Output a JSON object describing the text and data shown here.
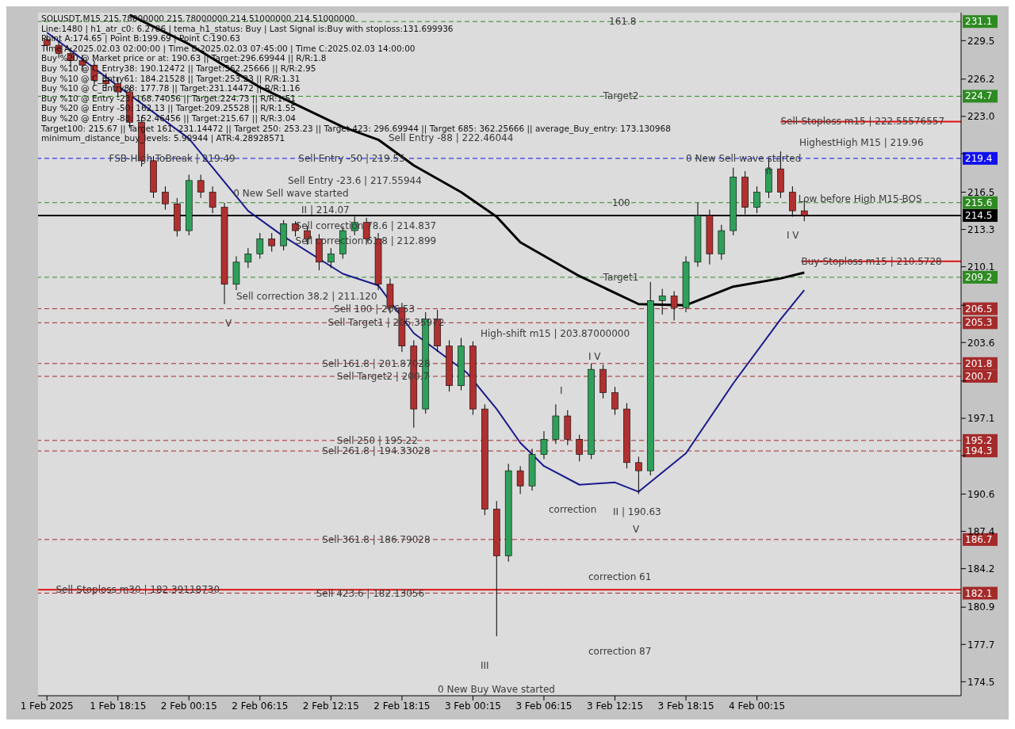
{
  "chart_data": {
    "type": "candlestick",
    "title": "SOLUSDT,M15  215.78000000 215.78000000 214.51000000 214.51000000",
    "x": [
      "2025-02-01T12:15",
      "2025-02-01T13:15",
      "2025-02-01T14:15",
      "2025-02-01T15:15",
      "2025-02-01T16:15",
      "2025-02-01T17:15",
      "2025-02-01T18:15",
      "2025-02-01T19:15",
      "2025-02-01T20:15",
      "2025-02-01T21:15",
      "2025-02-01T22:15",
      "2025-02-01T23:15",
      "2025-02-02T00:15",
      "2025-02-02T01:15",
      "2025-02-02T02:15",
      "2025-02-02T03:15",
      "2025-02-02T04:15",
      "2025-02-02T05:15",
      "2025-02-02T06:15",
      "2025-02-02T07:15",
      "2025-02-02T08:15",
      "2025-02-02T09:15",
      "2025-02-02T10:15",
      "2025-02-02T11:15",
      "2025-02-02T12:15",
      "2025-02-02T13:15",
      "2025-02-02T14:15",
      "2025-02-02T15:15",
      "2025-02-02T16:15",
      "2025-02-02T17:15",
      "2025-02-02T18:15",
      "2025-02-02T19:15",
      "2025-02-02T20:15",
      "2025-02-02T21:15",
      "2025-02-02T22:15",
      "2025-02-02T23:15",
      "2025-02-03T00:15",
      "2025-02-03T01:15",
      "2025-02-03T02:15",
      "2025-02-03T03:15",
      "2025-02-03T04:15",
      "2025-02-03T05:15",
      "2025-02-03T06:15",
      "2025-02-03T07:15",
      "2025-02-03T08:15",
      "2025-02-03T09:15",
      "2025-02-03T10:15",
      "2025-02-03T11:15",
      "2025-02-03T12:15",
      "2025-02-03T13:15",
      "2025-02-03T14:15",
      "2025-02-03T15:15",
      "2025-02-03T16:15",
      "2025-02-03T17:15",
      "2025-02-03T18:15",
      "2025-02-03T19:15",
      "2025-02-03T20:15",
      "2025-02-03T21:15",
      "2025-02-03T22:15",
      "2025-02-03T23:15",
      "2025-02-04T00:15",
      "2025-02-04T01:15",
      "2025-02-04T02:15",
      "2025-02-04T03:15",
      "2025-02-04T04:15"
    ],
    "ohlc": [
      [
        229.6,
        230.0,
        228.7,
        229.1
      ],
      [
        229.1,
        229.5,
        228.0,
        228.4
      ],
      [
        228.4,
        228.9,
        227.3,
        227.8
      ],
      [
        227.8,
        228.3,
        226.9,
        227.4
      ],
      [
        227.4,
        227.8,
        225.6,
        226.1
      ],
      [
        226.1,
        226.7,
        225.2,
        225.8
      ],
      [
        225.8,
        226.3,
        224.6,
        225.1
      ],
      [
        225.1,
        225.5,
        222.0,
        222.5
      ],
      [
        222.5,
        223.0,
        218.7,
        219.2
      ],
      [
        219.2,
        219.6,
        216.0,
        216.5
      ],
      [
        216.5,
        217.0,
        215.0,
        215.5
      ],
      [
        215.5,
        216.0,
        212.7,
        213.2
      ],
      [
        213.2,
        218.0,
        212.8,
        217.5
      ],
      [
        217.5,
        218.0,
        216.0,
        216.5
      ],
      [
        216.5,
        217.0,
        214.7,
        215.2
      ],
      [
        215.2,
        215.6,
        206.9,
        208.6
      ],
      [
        208.6,
        211.0,
        208.1,
        210.5
      ],
      [
        210.5,
        211.7,
        210.0,
        211.2
      ],
      [
        211.2,
        213.0,
        210.8,
        212.5
      ],
      [
        212.5,
        213.0,
        211.4,
        211.9
      ],
      [
        211.9,
        214.1,
        211.5,
        213.8
      ],
      [
        213.8,
        214.0,
        212.7,
        213.2
      ],
      [
        213.2,
        213.6,
        212.0,
        212.5
      ],
      [
        212.5,
        212.9,
        209.8,
        210.5
      ],
      [
        210.5,
        211.7,
        210.0,
        211.2
      ],
      [
        211.2,
        213.6,
        210.8,
        213.2
      ],
      [
        213.2,
        214.4,
        212.8,
        213.9
      ],
      [
        213.9,
        214.3,
        212.0,
        212.5
      ],
      [
        212.5,
        213.0,
        208.1,
        208.6
      ],
      [
        208.6,
        209.1,
        206.1,
        206.6
      ],
      [
        206.6,
        207.0,
        202.8,
        203.3
      ],
      [
        203.3,
        203.8,
        196.3,
        197.9
      ],
      [
        197.9,
        206.2,
        197.5,
        205.6
      ],
      [
        205.6,
        206.4,
        202.8,
        203.3
      ],
      [
        203.3,
        203.8,
        199.4,
        199.9
      ],
      [
        199.9,
        204.0,
        199.5,
        203.3
      ],
      [
        203.3,
        203.7,
        197.4,
        197.9
      ],
      [
        197.9,
        198.3,
        188.8,
        189.3
      ],
      [
        189.3,
        190.0,
        178.4,
        185.3
      ],
      [
        185.3,
        193.2,
        184.8,
        192.6
      ],
      [
        192.6,
        193.0,
        190.6,
        191.3
      ],
      [
        191.3,
        194.5,
        190.9,
        194.0
      ],
      [
        194.0,
        196.0,
        193.6,
        195.3
      ],
      [
        195.3,
        198.3,
        194.9,
        197.3
      ],
      [
        197.3,
        197.8,
        194.8,
        195.3
      ],
      [
        195.3,
        195.7,
        193.4,
        194.0
      ],
      [
        194.0,
        201.8,
        193.6,
        201.3
      ],
      [
        201.3,
        201.7,
        198.8,
        199.3
      ],
      [
        199.3,
        199.8,
        197.4,
        197.9
      ],
      [
        197.9,
        198.4,
        192.8,
        193.3
      ],
      [
        193.3,
        193.8,
        190.6,
        192.6
      ],
      [
        192.6,
        208.8,
        192.2,
        207.2
      ],
      [
        207.2,
        208.2,
        206.0,
        207.6
      ],
      [
        207.6,
        208.0,
        205.5,
        206.6
      ],
      [
        206.6,
        211.0,
        206.2,
        210.5
      ],
      [
        210.5,
        215.6,
        210.1,
        214.5
      ],
      [
        214.5,
        215.0,
        210.3,
        211.2
      ],
      [
        211.2,
        213.7,
        210.7,
        213.2
      ],
      [
        213.2,
        218.6,
        212.8,
        217.8
      ],
      [
        217.8,
        218.3,
        214.6,
        215.2
      ],
      [
        215.2,
        217.0,
        214.7,
        216.5
      ],
      [
        216.5,
        219.4,
        216.0,
        218.5
      ],
      [
        218.5,
        220.0,
        216.0,
        216.5
      ],
      [
        216.5,
        217.0,
        214.4,
        214.9
      ],
      [
        214.9,
        215.8,
        214.0,
        214.5
      ]
    ],
    "colors": [
      "#b03030",
      "#b03030",
      "#b03030",
      "#b03030",
      "#b03030",
      "#b03030",
      "#b03030",
      "#b03030",
      "#b03030",
      "#b03030",
      "#b03030",
      "#b03030",
      "#2ea05a",
      "#b03030",
      "#b03030",
      "#b03030",
      "#2ea05a",
      "#2ea05a",
      "#2ea05a",
      "#b03030",
      "#2ea05a",
      "#b03030",
      "#b03030",
      "#b03030",
      "#2ea05a",
      "#2ea05a",
      "#2ea05a",
      "#b03030",
      "#b03030",
      "#b03030",
      "#b03030",
      "#b03030",
      "#2ea05a",
      "#b03030",
      "#b03030",
      "#2ea05a",
      "#b03030",
      "#b03030",
      "#b03030",
      "#2ea05a",
      "#b03030",
      "#2ea05a",
      "#2ea05a",
      "#2ea05a",
      "#b03030",
      "#b03030",
      "#2ea05a",
      "#b03030",
      "#b03030",
      "#b03030",
      "#b03030",
      "#2ea05a",
      "#2ea05a",
      "#b03030",
      "#2ea05a",
      "#2ea05a",
      "#b03030",
      "#2ea05a",
      "#2ea05a",
      "#b03030",
      "#2ea05a",
      "#2ea05a",
      "#b03030",
      "#b03030",
      "#b03030"
    ],
    "series": [
      {
        "type": "line",
        "color": "#000000",
        "x": [
          "2025-02-01T19:15",
          "2025-02-02T00:15",
          "2025-02-02T06:15",
          "2025-02-02T13:15",
          "2025-02-02T16:15",
          "2025-02-02T19:15",
          "2025-02-02T23:15",
          "2025-02-03T02:15",
          "2025-02-03T04:15",
          "2025-02-03T09:15",
          "2025-02-03T14:15",
          "2025-02-03T18:15",
          "2025-02-03T22:15",
          "2025-02-04T02:15",
          "2025-02-04T04:15"
        ],
        "values": [
          231.7,
          229.2,
          225.5,
          222.1,
          221.0,
          218.8,
          216.5,
          214.4,
          212.2,
          209.3,
          206.9,
          206.8,
          208.4,
          209.1,
          209.6
        ]
      },
      {
        "type": "line",
        "color": "#1a1a8c",
        "x": [
          "2025-02-01T12:15",
          "2025-02-01T18:15",
          "2025-02-02T00:15",
          "2025-02-02T05:15",
          "2025-02-02T08:15",
          "2025-02-02T13:15",
          "2025-02-02T16:15",
          "2025-02-02T19:15",
          "2025-02-02T23:45",
          "2025-02-03T02:15",
          "2025-02-03T04:15",
          "2025-02-03T06:15",
          "2025-02-03T09:15",
          "2025-02-03T12:15",
          "2025-02-03T14:15",
          "2025-02-03T18:15",
          "2025-02-03T22:15",
          "2025-02-04T02:15",
          "2025-02-04T04:15"
        ],
        "values": [
          230.2,
          225.6,
          221.1,
          214.9,
          212.7,
          209.5,
          208.5,
          204.4,
          201.0,
          197.9,
          195.0,
          193.0,
          191.4,
          191.6,
          190.8,
          194.1,
          200.1,
          205.6,
          208.1
        ]
      },
      {
        "type": "line",
        "color": "#e01010",
        "x": [
          "2025-02-04T02:15",
          "2025-02-04T17:30"
        ],
        "values": [
          222.56,
          222.56
        ]
      },
      {
        "type": "line",
        "color": "#e01010",
        "x": [
          "2025-02-04T04:00",
          "2025-02-04T17:30"
        ],
        "values": [
          210.57,
          210.57
        ]
      }
    ],
    "line_style": "solid",
    "marker": "none",
    "xlim": [
      "2025-02-01T11:30",
      "2025-02-04T17:30"
    ],
    "xticks": [
      {
        "value": "2025-02-01T12:15",
        "label": "1 Feb 2025"
      },
      {
        "value": "2025-02-01T18:15",
        "label": "1 Feb 18:15"
      },
      {
        "value": "2025-02-02T00:15",
        "label": "2 Feb 00:15"
      },
      {
        "value": "2025-02-02T06:15",
        "label": "2 Feb 06:15"
      },
      {
        "value": "2025-02-02T12:15",
        "label": "2 Feb 12:15"
      },
      {
        "value": "2025-02-02T18:15",
        "label": "2 Feb 18:15"
      },
      {
        "value": "2025-02-03T00:15",
        "label": "3 Feb 00:15"
      },
      {
        "value": "2025-02-03T06:15",
        "label": "3 Feb 06:15"
      },
      {
        "value": "2025-02-03T12:15",
        "label": "3 Feb 12:15"
      },
      {
        "value": "2025-02-03T18:15",
        "label": "3 Feb 18:15"
      },
      {
        "value": "2025-02-04T00:15",
        "label": "4 Feb 00:15"
      }
    ],
    "ylim": [
      173.3,
      231.9
    ],
    "yticks": [
      {
        "value": 229.5,
        "label": "229.5"
      },
      {
        "value": 226.2,
        "label": "226.2"
      },
      {
        "value": 223.0,
        "label": "223.0"
      },
      {
        "value": 219.8,
        "label": null
      },
      {
        "value": 216.5,
        "label": "216.5"
      },
      {
        "value": 213.3,
        "label": "213.3"
      },
      {
        "value": 210.1,
        "label": "210.1"
      },
      {
        "value": 206.8,
        "label": null
      },
      {
        "value": 203.6,
        "label": "203.6"
      },
      {
        "value": 200.3,
        "label": null
      },
      {
        "value": 197.1,
        "label": "197.1"
      },
      {
        "value": 193.9,
        "label": null
      },
      {
        "value": 190.6,
        "label": "190.6"
      },
      {
        "value": 187.4,
        "label": "187.4"
      },
      {
        "value": 184.2,
        "label": "184.2"
      },
      {
        "value": 180.9,
        "label": "180.9"
      },
      {
        "value": 177.7,
        "label": "177.7"
      },
      {
        "value": 174.5,
        "label": "174.5"
      }
    ],
    "ref_lines": [
      {
        "axis": "y",
        "value": 231.14,
        "label": "231.1",
        "color": "#2e8b22",
        "line_style": "dashed"
      },
      {
        "axis": "y",
        "value": 224.73,
        "label": "224.7",
        "color": "#2e8b22",
        "line_style": "dashed"
      },
      {
        "axis": "y",
        "value": 219.4,
        "label": "219.4",
        "color": "#1010f0",
        "line_style": "dashed"
      },
      {
        "axis": "y",
        "value": 215.6,
        "label": "215.6",
        "color": "#2e8b22",
        "line_style": "dashed"
      },
      {
        "axis": "y",
        "value": 214.5,
        "label": "214.5",
        "color": "#000000",
        "line_style": "solid"
      },
      {
        "axis": "y",
        "value": 209.2,
        "label": "209.2",
        "color": "#2e8b22",
        "line_style": "dashed"
      },
      {
        "axis": "y",
        "value": 206.5,
        "label": "206.5",
        "color": "#a52a2a",
        "line_style": "dashed"
      },
      {
        "axis": "y",
        "value": 205.3,
        "label": "205.3",
        "color": "#a52a2a",
        "line_style": "dashed"
      },
      {
        "axis": "y",
        "value": 201.8,
        "label": "201.8",
        "color": "#a52a2a",
        "line_style": "dashed"
      },
      {
        "axis": "y",
        "value": 200.7,
        "label": "200.7",
        "color": "#a52a2a",
        "line_style": "dashed"
      },
      {
        "axis": "y",
        "value": 195.2,
        "label": "195.2",
        "color": "#a52a2a",
        "line_style": "dashed"
      },
      {
        "axis": "y",
        "value": 194.3,
        "label": "194.3",
        "color": "#a52a2a",
        "line_style": "dashed"
      },
      {
        "axis": "y",
        "value": 186.7,
        "label": "186.7",
        "color": "#a52a2a",
        "line_style": "dashed"
      },
      {
        "axis": "y",
        "value": 182.1,
        "label": "182.1",
        "color": "#a52a2a",
        "line_style": "dashed"
      },
      {
        "axis": "y",
        "value": 182.39,
        "label": null,
        "color": "#e01010",
        "line_style": "solid"
      }
    ],
    "annotations": [
      "Line:1480 | h1_atr_c0: 6.2786 | tema_h1_status: Buy | Last Signal is:Buy with stoploss:131.699936",
      "Point A:174.65 | Point B:199.69 | Point C:190.63",
      "Time A:2025.02.03 02:00:00 | Time B:2025.02.03 07:45:00 | Time C:2025.02.03 14:00:00",
      "Buy %20 @ Market price or at: 190.63 || Target:296.69944 || R/R:1.8",
      "Buy %10 @ C_Entry38: 190.12472 || Target:362.25666 || R/R:2.95",
      "Buy %10 @ C_Entry61: 184.21528 || Target:253.23 || R/R:1.31",
      "Buy %10 @ C_Entry88: 177.78 || Target:231.14472 || R/R:1.16",
      "Buy %10 @ Entry -23: 168.74056 || Target:224.73 || R/R:1.51",
      "Buy %20 @ Entry -50: 162.13 || Target:209.25528 || R/R:1.55",
      "Buy %20 @ Entry -88: 152.46456 || Target:215.67 || R/R:3.04",
      "Target100: 215.67 || Target 161: 231.14472 || Target 250: 253.23 || Target 423: 296.69944 || Target 685: 362.25666 || average_Buy_entry: 173.130968",
      "minimum_distance_buy_levels: 5.90944 | ATR:4.28928571",
      "Sell Entry -88 | 222.46044",
      "Sell Entry -23.6 | 217.55944",
      "II | 214.07",
      "Sell correction 38.2 | 211.120",
      "V",
      "High-shift m15 | 203.87000000",
      "I V",
      "I",
      "correction",
      "II | 190.63",
      "V",
      "correction 61",
      "correction 87",
      "III",
      "0 New Buy Wave started",
      "HighestHigh M15 | 219.96",
      "I V",
      {
        "text": "161.8",
        "x": "2025-02-03T11:45",
        "y": 231.14
      },
      {
        "text": "Target2",
        "x": "2025-02-03T11:15",
        "y": 224.73
      },
      {
        "text": "FSB-High ToBreak | 219.49",
        "x": "2025-02-01T17:30",
        "y": 219.4
      },
      {
        "text": "Sell Entry -50 | 219.55",
        "x": "2025-02-02T09:30",
        "y": 219.4
      },
      {
        "text": "0 New Sell wave started",
        "x": "2025-02-02T04:00",
        "y": 216.4
      },
      {
        "text": "Sell correction 78.6 | 214.837",
        "x": "2025-02-02T09:15",
        "y": 213.6
      },
      {
        "text": "Sell correction 61.8 | 212.899",
        "x": "2025-02-02T09:15",
        "y": 212.3
      },
      {
        "text": "100",
        "x": "2025-02-03T12:00",
        "y": 215.6
      },
      {
        "text": "Target1",
        "x": "2025-02-03T11:15",
        "y": 209.2
      },
      {
        "text": "Sell 100 | 206.53",
        "x": "2025-02-02T12:30",
        "y": 206.5
      },
      {
        "text": "Sell Target1 | 205.35972",
        "x": "2025-02-02T12:00",
        "y": 205.3
      },
      {
        "text": "Sell 161.8 | 201.87028",
        "x": "2025-02-02T11:30",
        "y": 201.8
      },
      {
        "text": "Sell Target2 | 200.7",
        "x": "2025-02-02T12:45",
        "y": 200.7
      },
      {
        "text": "Sell 250 | 195.22",
        "x": "2025-02-02T12:45",
        "y": 195.2
      },
      {
        "text": "Sell 261.8 | 194.33028",
        "x": "2025-02-02T11:30",
        "y": 194.3
      },
      {
        "text": "Sell 361.8 | 186.79028",
        "x": "2025-02-02T11:30",
        "y": 186.7
      },
      {
        "text": "Sell-Stoploss m30 | 182.39118730",
        "x": "2025-02-01T13:00",
        "y": 182.39
      },
      {
        "text": "Sell 423.6 | 182.13056",
        "x": "2025-02-02T11:00",
        "y": 182.1
      },
      {
        "text": "Sell-Stoploss m15 | 222.55576557",
        "x": "2025-02-04T02:15",
        "y": 222.56
      },
      {
        "text": "0 New Sell wave started",
        "x": "2025-02-03T18:15",
        "y": 219.4
      },
      {
        "text": "II",
        "x": "2025-02-04T01:00",
        "y": 218.3
      },
      {
        "text": "Low before High M15-BOS",
        "x": "2025-02-04T03:45",
        "y": 215.9
      },
      {
        "text": "Buy-Stoploss m15 | 210.5728",
        "x": "2025-02-04T04:00",
        "y": 210.57
      }
    ]
  }
}
